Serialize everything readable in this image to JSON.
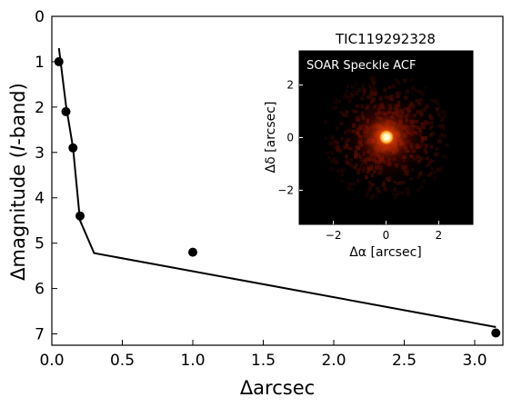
{
  "chart_data": [
    {
      "type": "scatter",
      "xlabel": "Δarcsec",
      "ylabel": "Δmagnitude (I-band)",
      "ylabel_parts": {
        "prefix": "Δmagnitude (",
        "italic": "I",
        "suffix": "-band)"
      },
      "xlim": [
        0.0,
        3.2
      ],
      "ylim": [
        7.25,
        0.0
      ],
      "y_inverted": true,
      "xticks": [
        "0.0",
        "0.5",
        "1.0",
        "1.5",
        "2.0",
        "2.5",
        "3.0"
      ],
      "yticks": [
        "0",
        "1",
        "2",
        "3",
        "4",
        "5",
        "6",
        "7"
      ],
      "grid": false,
      "points": [
        {
          "x": 0.05,
          "y": 1.0
        },
        {
          "x": 0.1,
          "y": 2.1
        },
        {
          "x": 0.15,
          "y": 2.9
        },
        {
          "x": 0.2,
          "y": 4.4
        },
        {
          "x": 1.0,
          "y": 5.2
        },
        {
          "x": 3.15,
          "y": 6.98
        }
      ],
      "contrast_curve": [
        {
          "x": 0.05,
          "y": 0.7
        },
        {
          "x": 0.1,
          "y": 1.95
        },
        {
          "x": 0.15,
          "y": 2.9
        },
        {
          "x": 0.2,
          "y": 4.5
        },
        {
          "x": 0.3,
          "y": 5.22
        },
        {
          "x": 3.15,
          "y": 6.85
        }
      ]
    },
    {
      "type": "heatmap",
      "title": "TIC119292328",
      "annotation": "SOAR Speckle ACF",
      "xlabel": "Δα [arcsec]",
      "ylabel": "Δδ [arcsec]",
      "xlim": [
        -3.3,
        3.3
      ],
      "ylim": [
        -3.3,
        3.3
      ],
      "xticks": [
        "−2",
        "0",
        "2"
      ],
      "yticks": [
        "2",
        "0",
        "−2"
      ],
      "colormap": "afmhot",
      "background_color": "#000000",
      "peak_color": "#ffffff"
    }
  ]
}
